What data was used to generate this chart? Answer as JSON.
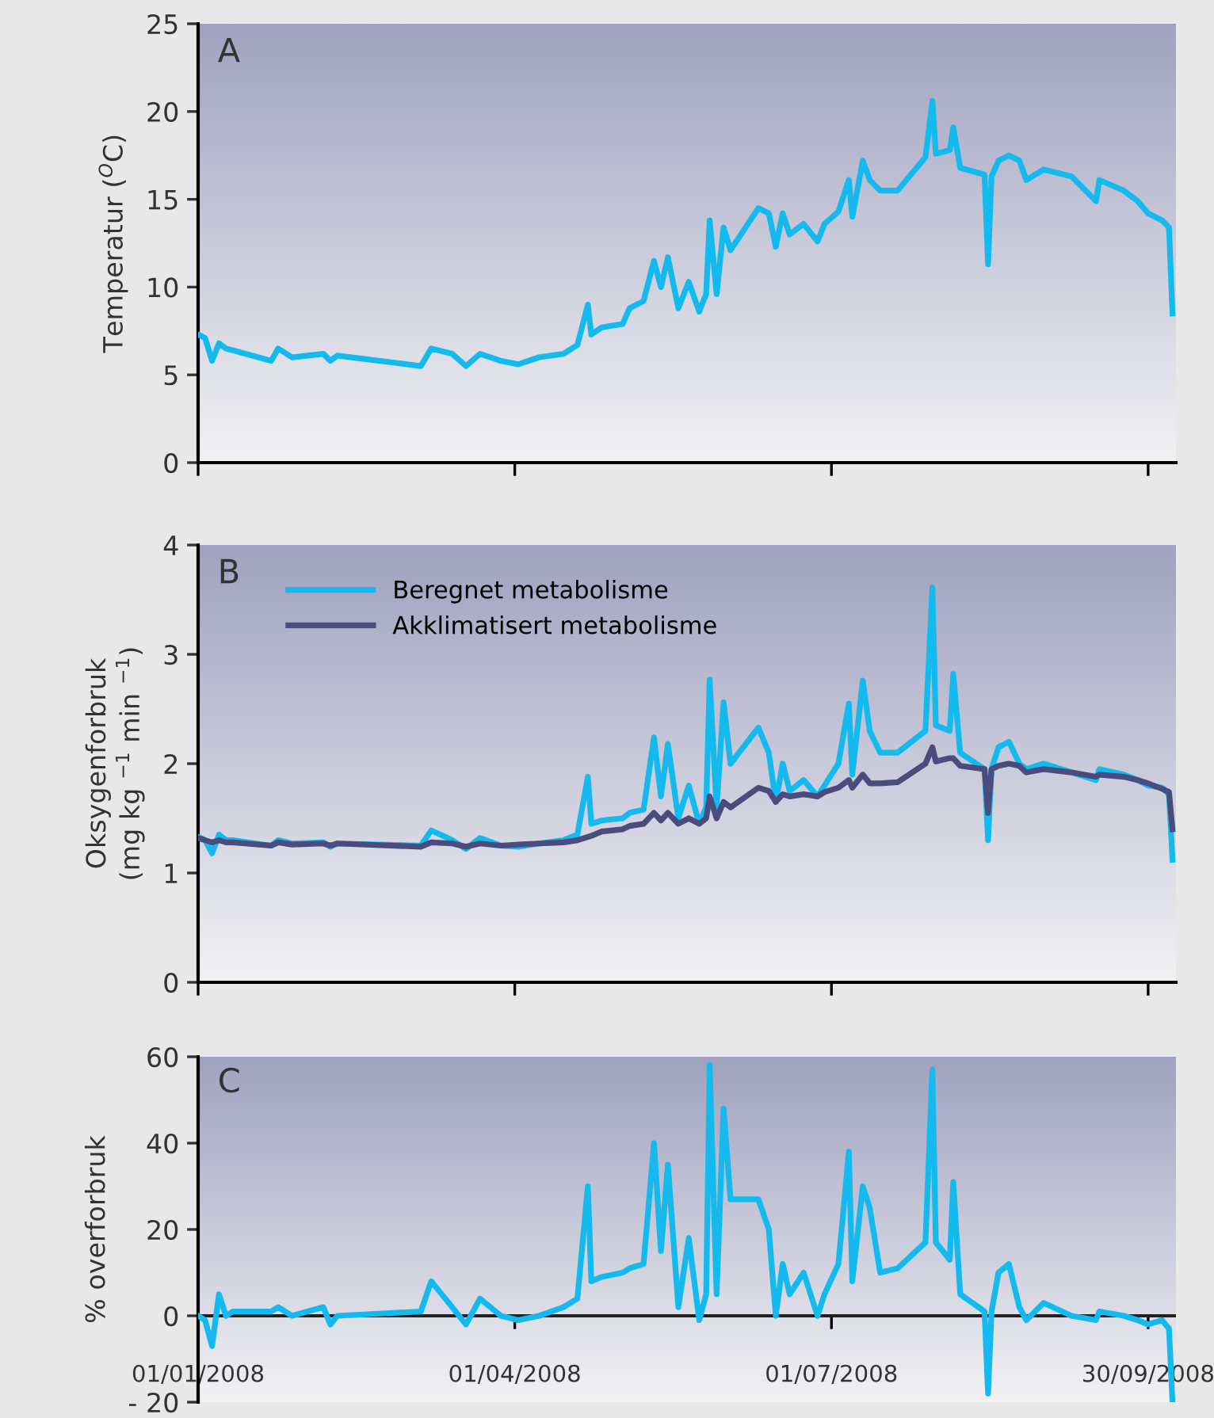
{
  "chart_data": [
    {
      "type": "line",
      "ylabel": "Temperatur ($^{O}$C)",
      "annotations": [
        "A"
      ],
      "xlim": [
        "2008-01-01",
        "2008-10-08"
      ],
      "xticks": [
        {
          "value": "2008-01-01",
          "label": null
        },
        {
          "value": "2008-04-01",
          "label": null
        },
        {
          "value": "2008-07-01",
          "label": null
        },
        {
          "value": "2008-09-30",
          "label": null
        }
      ],
      "ylim": [
        0,
        25
      ],
      "yticks": [
        0,
        5,
        10,
        15,
        20,
        25
      ],
      "tick_labels": "y",
      "grid": false,
      "legend": false,
      "series": [
        {
          "color": "#14b9ee",
          "x": [
            "2008-01-01",
            "2008-01-03",
            "2008-01-05",
            "2008-01-07",
            "2008-01-09",
            "2008-01-11",
            "2008-01-22",
            "2008-01-24",
            "2008-01-28",
            "2008-02-06",
            "2008-02-08",
            "2008-02-10",
            "2008-03-05",
            "2008-03-08",
            "2008-03-14",
            "2008-03-18",
            "2008-03-22",
            "2008-03-28",
            "2008-04-02",
            "2008-04-08",
            "2008-04-15",
            "2008-04-19",
            "2008-04-22",
            "2008-04-23",
            "2008-04-26",
            "2008-05-02",
            "2008-05-04",
            "2008-05-08",
            "2008-05-11",
            "2008-05-13",
            "2008-05-15",
            "2008-05-18",
            "2008-05-21",
            "2008-05-24",
            "2008-05-26",
            "2008-05-27",
            "2008-05-29",
            "2008-05-31",
            "2008-06-02",
            "2008-06-10",
            "2008-06-13",
            "2008-06-15",
            "2008-06-17",
            "2008-06-19",
            "2008-06-23",
            "2008-06-27",
            "2008-06-29",
            "2008-07-03",
            "2008-07-06",
            "2008-07-07",
            "2008-07-10",
            "2008-07-12",
            "2008-07-15",
            "2008-07-20",
            "2008-07-28",
            "2008-07-30",
            "2008-07-31",
            "2008-08-04",
            "2008-08-05",
            "2008-08-07",
            "2008-08-14",
            "2008-08-15",
            "2008-08-16",
            "2008-08-18",
            "2008-08-21",
            "2008-08-24",
            "2008-08-26",
            "2008-08-31",
            "2008-09-08",
            "2008-09-15",
            "2008-09-16",
            "2008-09-23",
            "2008-09-27",
            "2008-09-30",
            "2008-10-04",
            "2008-10-06",
            "2008-10-07"
          ],
          "values": [
            7.3,
            7.1,
            5.8,
            6.8,
            6.5,
            6.4,
            5.8,
            6.5,
            6.0,
            6.2,
            5.8,
            6.1,
            5.5,
            6.5,
            6.2,
            5.5,
            6.2,
            5.8,
            5.6,
            6.0,
            6.2,
            6.7,
            9.0,
            7.3,
            7.7,
            7.9,
            8.8,
            9.2,
            11.5,
            10.0,
            11.7,
            8.8,
            10.3,
            8.6,
            9.6,
            13.8,
            9.6,
            13.4,
            12.1,
            14.5,
            14.2,
            12.3,
            14.2,
            13.0,
            13.6,
            12.6,
            13.6,
            14.3,
            16.1,
            14.0,
            17.2,
            16.1,
            15.5,
            15.5,
            17.4,
            20.6,
            17.6,
            17.8,
            19.1,
            16.8,
            16.4,
            11.3,
            16.3,
            17.2,
            17.5,
            17.2,
            16.1,
            16.7,
            16.3,
            14.9,
            16.1,
            15.5,
            14.9,
            14.2,
            13.8,
            13.4,
            8.5
          ]
        }
      ]
    },
    {
      "type": "line",
      "ylabel": "Oksygenforbruk\n(mg kg $^{−1}$ min $^{−1}$)",
      "annotations": [
        "B"
      ],
      "xlim": [
        "2008-01-01",
        "2008-10-08"
      ],
      "xticks": [
        {
          "value": "2008-01-01",
          "label": null
        },
        {
          "value": "2008-04-01",
          "label": null
        },
        {
          "value": "2008-07-01",
          "label": null
        },
        {
          "value": "2008-09-30",
          "label": null
        }
      ],
      "ylim": [
        0,
        4
      ],
      "yticks": [
        0,
        1,
        2,
        3,
        4
      ],
      "tick_labels": "y",
      "grid": false,
      "legend": "top left",
      "series": [
        {
          "name": "Beregnet metabolisme",
          "color": "#14b9ee",
          "x": [
            "2008-01-01",
            "2008-01-03",
            "2008-01-05",
            "2008-01-07",
            "2008-01-09",
            "2008-01-11",
            "2008-01-22",
            "2008-01-24",
            "2008-01-28",
            "2008-02-06",
            "2008-02-08",
            "2008-02-10",
            "2008-03-05",
            "2008-03-08",
            "2008-03-14",
            "2008-03-18",
            "2008-03-22",
            "2008-03-28",
            "2008-04-02",
            "2008-04-08",
            "2008-04-15",
            "2008-04-19",
            "2008-04-22",
            "2008-04-23",
            "2008-04-26",
            "2008-05-02",
            "2008-05-04",
            "2008-05-08",
            "2008-05-11",
            "2008-05-13",
            "2008-05-15",
            "2008-05-18",
            "2008-05-21",
            "2008-05-24",
            "2008-05-26",
            "2008-05-27",
            "2008-05-29",
            "2008-05-31",
            "2008-06-02",
            "2008-06-10",
            "2008-06-13",
            "2008-06-15",
            "2008-06-17",
            "2008-06-19",
            "2008-06-23",
            "2008-06-27",
            "2008-06-29",
            "2008-07-03",
            "2008-07-06",
            "2008-07-07",
            "2008-07-10",
            "2008-07-12",
            "2008-07-15",
            "2008-07-20",
            "2008-07-28",
            "2008-07-30",
            "2008-07-31",
            "2008-08-04",
            "2008-08-05",
            "2008-08-07",
            "2008-08-14",
            "2008-08-15",
            "2008-08-16",
            "2008-08-18",
            "2008-08-21",
            "2008-08-24",
            "2008-08-26",
            "2008-08-31",
            "2008-09-08",
            "2008-09-15",
            "2008-09-16",
            "2008-09-23",
            "2008-09-27",
            "2008-09-30",
            "2008-10-04",
            "2008-10-06",
            "2008-10-07"
          ],
          "values": [
            1.33,
            1.3,
            1.18,
            1.35,
            1.3,
            1.3,
            1.25,
            1.3,
            1.27,
            1.28,
            1.24,
            1.27,
            1.25,
            1.39,
            1.3,
            1.22,
            1.32,
            1.25,
            1.24,
            1.27,
            1.3,
            1.35,
            1.88,
            1.45,
            1.48,
            1.5,
            1.55,
            1.58,
            2.24,
            1.7,
            2.18,
            1.5,
            1.8,
            1.45,
            1.6,
            2.77,
            1.6,
            2.56,
            2.0,
            2.33,
            2.1,
            1.65,
            2.0,
            1.75,
            1.85,
            1.7,
            1.8,
            2.0,
            2.55,
            1.9,
            2.76,
            2.3,
            2.1,
            2.1,
            2.3,
            3.61,
            2.35,
            2.3,
            2.82,
            2.1,
            1.95,
            1.3,
            1.95,
            2.15,
            2.2,
            2.0,
            1.95,
            2.0,
            1.92,
            1.85,
            1.95,
            1.9,
            1.85,
            1.8,
            1.78,
            1.72,
            1.12
          ]
        },
        {
          "name": "Akklimatisert metabolisme",
          "color": "#4b4c7e",
          "x": [
            "2008-01-01",
            "2008-01-03",
            "2008-01-05",
            "2008-01-07",
            "2008-01-09",
            "2008-01-11",
            "2008-01-22",
            "2008-01-24",
            "2008-01-28",
            "2008-02-06",
            "2008-02-08",
            "2008-02-10",
            "2008-03-05",
            "2008-03-08",
            "2008-03-14",
            "2008-03-18",
            "2008-03-22",
            "2008-03-28",
            "2008-04-02",
            "2008-04-08",
            "2008-04-15",
            "2008-04-19",
            "2008-04-22",
            "2008-04-23",
            "2008-04-26",
            "2008-05-02",
            "2008-05-04",
            "2008-05-08",
            "2008-05-11",
            "2008-05-13",
            "2008-05-15",
            "2008-05-18",
            "2008-05-21",
            "2008-05-24",
            "2008-05-26",
            "2008-05-27",
            "2008-05-29",
            "2008-05-31",
            "2008-06-02",
            "2008-06-10",
            "2008-06-13",
            "2008-06-15",
            "2008-06-17",
            "2008-06-19",
            "2008-06-23",
            "2008-06-27",
            "2008-06-29",
            "2008-07-03",
            "2008-07-06",
            "2008-07-07",
            "2008-07-10",
            "2008-07-12",
            "2008-07-15",
            "2008-07-20",
            "2008-07-28",
            "2008-07-30",
            "2008-07-31",
            "2008-08-04",
            "2008-08-05",
            "2008-08-07",
            "2008-08-14",
            "2008-08-15",
            "2008-08-16",
            "2008-08-18",
            "2008-08-21",
            "2008-08-24",
            "2008-08-26",
            "2008-08-31",
            "2008-09-08",
            "2008-09-15",
            "2008-09-16",
            "2008-09-23",
            "2008-09-27",
            "2008-09-30",
            "2008-10-04",
            "2008-10-06",
            "2008-10-07"
          ],
          "values": [
            1.32,
            1.3,
            1.28,
            1.3,
            1.28,
            1.28,
            1.25,
            1.28,
            1.26,
            1.27,
            1.25,
            1.27,
            1.24,
            1.28,
            1.27,
            1.24,
            1.27,
            1.25,
            1.26,
            1.27,
            1.28,
            1.3,
            1.33,
            1.34,
            1.38,
            1.4,
            1.43,
            1.45,
            1.55,
            1.48,
            1.55,
            1.45,
            1.5,
            1.45,
            1.5,
            1.7,
            1.5,
            1.65,
            1.6,
            1.78,
            1.75,
            1.65,
            1.72,
            1.7,
            1.72,
            1.7,
            1.74,
            1.78,
            1.85,
            1.78,
            1.9,
            1.82,
            1.82,
            1.83,
            2.0,
            2.15,
            2.02,
            2.05,
            2.05,
            1.98,
            1.95,
            1.55,
            1.95,
            1.98,
            2.0,
            1.98,
            1.92,
            1.95,
            1.92,
            1.88,
            1.9,
            1.88,
            1.85,
            1.82,
            1.77,
            1.74,
            1.4
          ]
        }
      ]
    },
    {
      "type": "line",
      "ylabel": "% overforbruk",
      "annotations": [
        "C"
      ],
      "xlim": [
        "2008-01-01",
        "2008-10-08"
      ],
      "xticks": [
        {
          "value": "2008-01-01",
          "label": "01/01/2008"
        },
        {
          "value": "2008-04-01",
          "label": "01/04/2008"
        },
        {
          "value": "2008-07-01",
          "label": "01/07/2008"
        },
        {
          "value": "2008-09-30",
          "label": "30/09/2008"
        }
      ],
      "ylim": [
        -20,
        60
      ],
      "yticks": [
        {
          "value": -20,
          "label": "- 20"
        },
        0,
        20,
        40,
        60
      ],
      "ref_lines": [
        {
          "axis": "y",
          "value": 0,
          "color": "#222222"
        }
      ],
      "grid": false,
      "legend": false,
      "series": [
        {
          "color": "#14b9ee",
          "x": [
            "2008-01-01",
            "2008-01-03",
            "2008-01-05",
            "2008-01-07",
            "2008-01-09",
            "2008-01-11",
            "2008-01-22",
            "2008-01-24",
            "2008-01-28",
            "2008-02-06",
            "2008-02-08",
            "2008-02-10",
            "2008-03-05",
            "2008-03-08",
            "2008-03-14",
            "2008-03-18",
            "2008-03-22",
            "2008-03-28",
            "2008-04-02",
            "2008-04-08",
            "2008-04-15",
            "2008-04-19",
            "2008-04-22",
            "2008-04-23",
            "2008-04-26",
            "2008-05-02",
            "2008-05-04",
            "2008-05-08",
            "2008-05-11",
            "2008-05-13",
            "2008-05-15",
            "2008-05-18",
            "2008-05-21",
            "2008-05-24",
            "2008-05-26",
            "2008-05-27",
            "2008-05-29",
            "2008-05-31",
            "2008-06-02",
            "2008-06-10",
            "2008-06-13",
            "2008-06-15",
            "2008-06-17",
            "2008-06-19",
            "2008-06-23",
            "2008-06-27",
            "2008-06-29",
            "2008-07-03",
            "2008-07-06",
            "2008-07-07",
            "2008-07-10",
            "2008-07-12",
            "2008-07-15",
            "2008-07-20",
            "2008-07-28",
            "2008-07-30",
            "2008-07-31",
            "2008-08-04",
            "2008-08-05",
            "2008-08-07",
            "2008-08-14",
            "2008-08-15",
            "2008-08-16",
            "2008-08-18",
            "2008-08-21",
            "2008-08-24",
            "2008-08-26",
            "2008-08-31",
            "2008-09-08",
            "2008-09-15",
            "2008-09-16",
            "2008-09-23",
            "2008-09-27",
            "2008-09-30",
            "2008-10-04",
            "2008-10-06",
            "2008-10-07"
          ],
          "values": [
            0,
            -1,
            -7,
            5,
            0,
            1,
            1,
            2,
            0,
            2,
            -2,
            0,
            1,
            8,
            2,
            -2,
            4,
            0,
            -1,
            0,
            2,
            4,
            30,
            8,
            9,
            10,
            11,
            12,
            40,
            15,
            35,
            2,
            18,
            -1,
            5,
            58,
            5,
            48,
            27,
            27,
            20,
            0,
            12,
            5,
            10,
            0,
            5,
            12,
            38,
            8,
            30,
            25,
            10,
            11,
            17,
            57,
            17,
            13,
            31,
            5,
            1,
            -18,
            1,
            10,
            12,
            2,
            -1,
            3,
            0,
            -1,
            1,
            0,
            -1,
            -2,
            -1,
            -3,
            -20
          ]
        }
      ]
    }
  ]
}
